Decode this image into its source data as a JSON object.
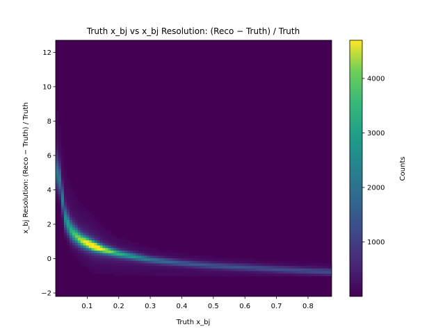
{
  "chart_data": {
    "type": "heatmap",
    "title": "Truth x_bj vs x_bj Resolution: (Reco − Truth) / Truth",
    "xlabel": "Truth x_bj",
    "ylabel": "x_bj Resolution: (Reco − Truth) / Truth",
    "colorbar_label": "Counts",
    "colormap": "viridis",
    "xlim": [
      0.0,
      0.875
    ],
    "ylim": [
      -2.2,
      12.7
    ],
    "clim": [
      0,
      4700
    ],
    "x_ticks": [
      "0.1",
      "0.2",
      "0.3",
      "0.4",
      "0.5",
      "0.6",
      "0.7",
      "0.8"
    ],
    "y_ticks": [
      "−2",
      "0",
      "2",
      "4",
      "6",
      "8",
      "10",
      "12"
    ],
    "colorbar_ticks": [
      "1000",
      "2000",
      "3000",
      "4000"
    ],
    "density_ridge": {
      "description_points": [
        {
          "x": 0.01,
          "y_peak": 5.0,
          "counts": 1500
        },
        {
          "x": 0.03,
          "y_peak": 2.4,
          "counts": 1800
        },
        {
          "x": 0.05,
          "y_peak": 1.6,
          "counts": 2400
        },
        {
          "x": 0.08,
          "y_peak": 1.1,
          "counts": 3300
        },
        {
          "x": 0.12,
          "y_peak": 0.75,
          "counts": 4700
        },
        {
          "x": 0.15,
          "y_peak": 0.55,
          "counts": 3600
        },
        {
          "x": 0.2,
          "y_peak": 0.3,
          "counts": 2400
        },
        {
          "x": 0.3,
          "y_peak": -0.05,
          "counts": 1500
        },
        {
          "x": 0.4,
          "y_peak": -0.25,
          "counts": 1100
        },
        {
          "x": 0.5,
          "y_peak": -0.4,
          "counts": 1000
        },
        {
          "x": 0.6,
          "y_peak": -0.5,
          "counts": 950
        },
        {
          "x": 0.7,
          "y_peak": -0.6,
          "counts": 900
        },
        {
          "x": 0.8,
          "y_peak": -0.7,
          "counts": 900
        },
        {
          "x": 0.87,
          "y_peak": -0.75,
          "counts": 900
        }
      ],
      "lower_edge": -0.9
    }
  }
}
